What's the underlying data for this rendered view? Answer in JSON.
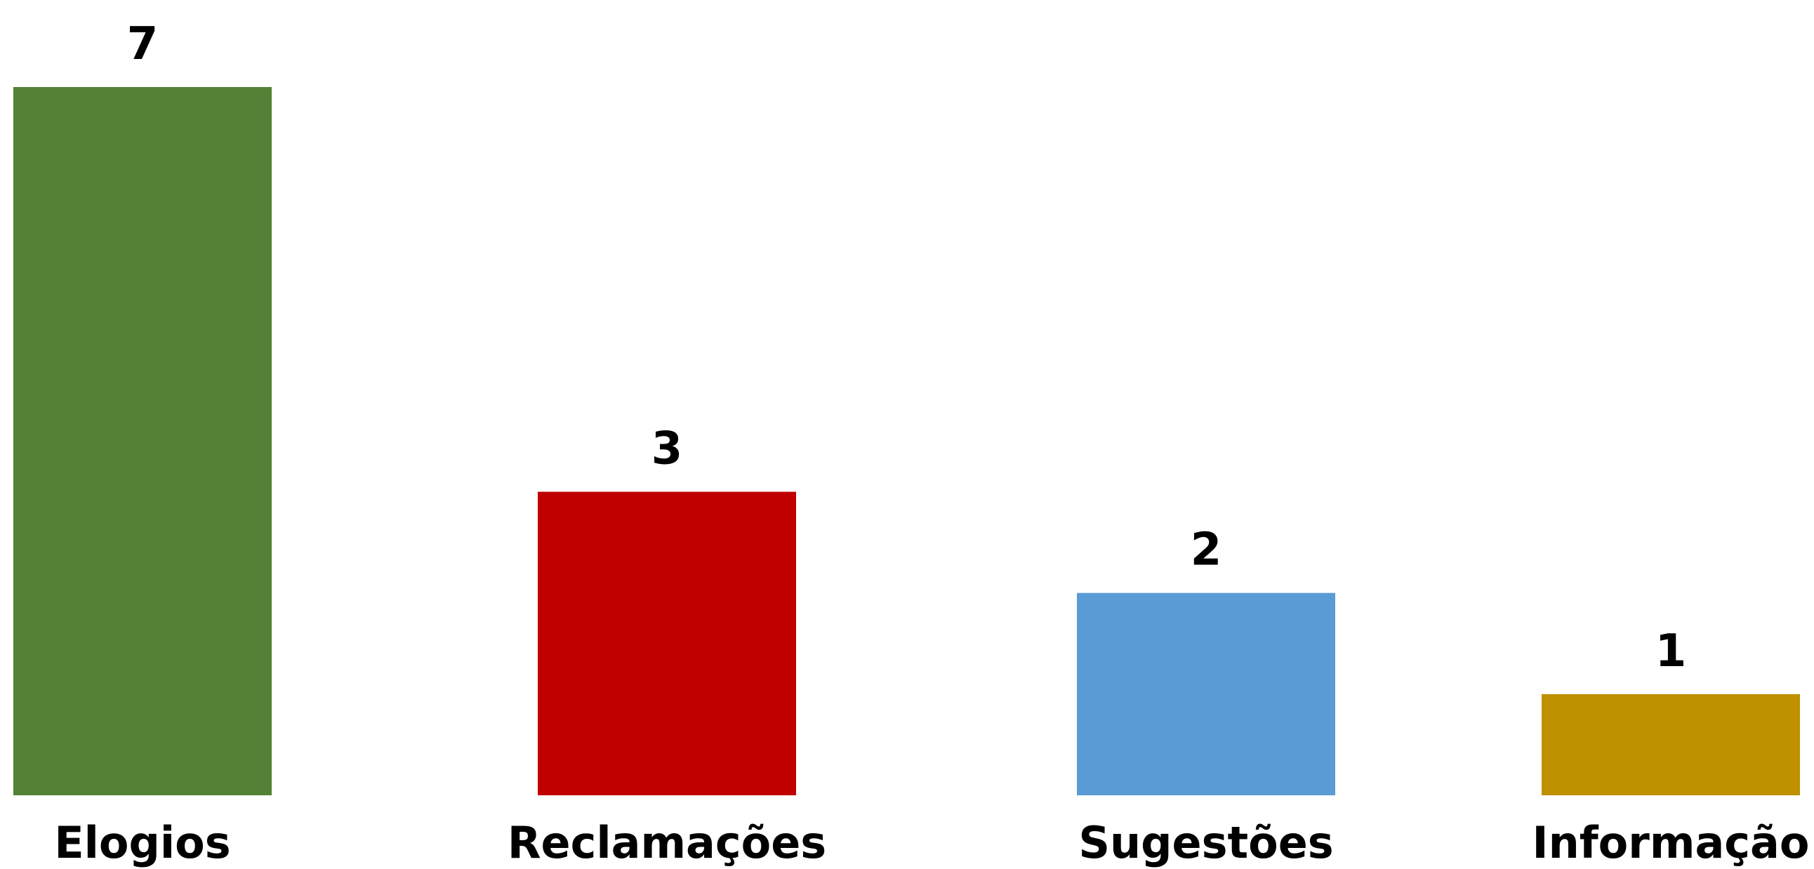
{
  "chart_data": {
    "type": "bar",
    "categories": [
      "Elogios",
      "Reclamações",
      "Sugestões",
      "Informação"
    ],
    "values": [
      7,
      3,
      2,
      1
    ],
    "colors": [
      "#538135",
      "#C00000",
      "#5B9BD5",
      "#BF9000"
    ],
    "title": "",
    "xlabel": "",
    "ylabel": "",
    "ylim": [
      0,
      7
    ],
    "grid": false,
    "legend": "none",
    "data_labels": true
  }
}
